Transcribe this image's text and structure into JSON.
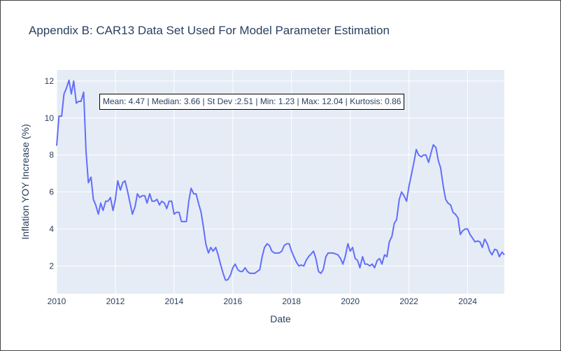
{
  "title": "Appendix B: CAR13 Data Set Used For Model Parameter Estimation",
  "annotation": "Mean: 4.47 | Median: 3.66 | St Dev :2.51 | Min: 1.23 | Max: 12.04 | Kurtosis: 0.86",
  "colors": {
    "line": "#636efa",
    "plot_bg": "#e5ecf6",
    "grid": "#ffffff",
    "text": "#2a3f5f"
  },
  "chart_data": {
    "type": "line",
    "title": "Appendix B: CAR13 Data Set Used For Model Parameter Estimation",
    "xlabel": "Date",
    "ylabel": "Inflation YOY Increase (%)",
    "xlim": [
      2010.0,
      2025.25
    ],
    "ylim": [
      0.5,
      12.6
    ],
    "x_ticks": [
      2010,
      2012,
      2014,
      2016,
      2018,
      2020,
      2022,
      2024
    ],
    "x_tick_labels": [
      "2010",
      "2012",
      "2014",
      "2016",
      "2018",
      "2020",
      "2022",
      "2024"
    ],
    "y_ticks": [
      2,
      4,
      6,
      8,
      10,
      12
    ],
    "y_tick_labels": [
      "2",
      "4",
      "6",
      "8",
      "10",
      "12"
    ],
    "grid": true,
    "series": [
      {
        "points": [
          [
            2010.0,
            8.5
          ],
          [
            2010.08,
            10.1
          ],
          [
            2010.17,
            10.1
          ],
          [
            2010.25,
            11.3
          ],
          [
            2010.33,
            11.6
          ],
          [
            2010.42,
            12.04
          ],
          [
            2010.5,
            11.3
          ],
          [
            2010.58,
            12.0
          ],
          [
            2010.67,
            10.8
          ],
          [
            2010.75,
            10.9
          ],
          [
            2010.83,
            10.9
          ],
          [
            2010.92,
            11.4
          ],
          [
            2011.0,
            8.2
          ],
          [
            2011.08,
            6.5
          ],
          [
            2011.17,
            6.8
          ],
          [
            2011.25,
            5.6
          ],
          [
            2011.33,
            5.3
          ],
          [
            2011.42,
            4.8
          ],
          [
            2011.5,
            5.4
          ],
          [
            2011.58,
            5.0
          ],
          [
            2011.67,
            5.5
          ],
          [
            2011.75,
            5.5
          ],
          [
            2011.83,
            5.7
          ],
          [
            2011.92,
            5.0
          ],
          [
            2012.0,
            5.6
          ],
          [
            2012.08,
            6.6
          ],
          [
            2012.17,
            6.1
          ],
          [
            2012.25,
            6.5
          ],
          [
            2012.33,
            6.6
          ],
          [
            2012.42,
            6.0
          ],
          [
            2012.5,
            5.4
          ],
          [
            2012.58,
            4.8
          ],
          [
            2012.67,
            5.2
          ],
          [
            2012.75,
            5.9
          ],
          [
            2012.83,
            5.7
          ],
          [
            2012.92,
            5.8
          ],
          [
            2013.0,
            5.8
          ],
          [
            2013.08,
            5.4
          ],
          [
            2013.17,
            5.9
          ],
          [
            2013.25,
            5.5
          ],
          [
            2013.33,
            5.5
          ],
          [
            2013.42,
            5.6
          ],
          [
            2013.5,
            5.3
          ],
          [
            2013.58,
            5.5
          ],
          [
            2013.67,
            5.4
          ],
          [
            2013.75,
            5.1
          ],
          [
            2013.83,
            5.5
          ],
          [
            2013.92,
            5.5
          ],
          [
            2014.0,
            4.8
          ],
          [
            2014.08,
            4.9
          ],
          [
            2014.17,
            4.9
          ],
          [
            2014.25,
            4.4
          ],
          [
            2014.33,
            4.4
          ],
          [
            2014.42,
            4.4
          ],
          [
            2014.5,
            5.5
          ],
          [
            2014.58,
            6.2
          ],
          [
            2014.67,
            5.9
          ],
          [
            2014.75,
            5.9
          ],
          [
            2014.83,
            5.4
          ],
          [
            2014.92,
            4.9
          ],
          [
            2015.0,
            4.1
          ],
          [
            2015.08,
            3.2
          ],
          [
            2015.17,
            2.7
          ],
          [
            2015.25,
            3.0
          ],
          [
            2015.33,
            2.8
          ],
          [
            2015.42,
            3.0
          ],
          [
            2015.5,
            2.6
          ],
          [
            2015.58,
            2.1
          ],
          [
            2015.67,
            1.6
          ],
          [
            2015.75,
            1.23
          ],
          [
            2015.83,
            1.25
          ],
          [
            2015.92,
            1.5
          ],
          [
            2016.0,
            1.9
          ],
          [
            2016.08,
            2.1
          ],
          [
            2016.17,
            1.8
          ],
          [
            2016.25,
            1.7
          ],
          [
            2016.33,
            1.7
          ],
          [
            2016.42,
            1.9
          ],
          [
            2016.5,
            1.7
          ],
          [
            2016.58,
            1.6
          ],
          [
            2016.67,
            1.6
          ],
          [
            2016.75,
            1.6
          ],
          [
            2016.83,
            1.7
          ],
          [
            2016.92,
            1.8
          ],
          [
            2017.0,
            2.5
          ],
          [
            2017.08,
            3.0
          ],
          [
            2017.17,
            3.2
          ],
          [
            2017.25,
            3.1
          ],
          [
            2017.33,
            2.8
          ],
          [
            2017.42,
            2.7
          ],
          [
            2017.5,
            2.7
          ],
          [
            2017.58,
            2.7
          ],
          [
            2017.67,
            2.8
          ],
          [
            2017.75,
            3.1
          ],
          [
            2017.83,
            3.2
          ],
          [
            2017.92,
            3.2
          ],
          [
            2018.0,
            2.8
          ],
          [
            2018.08,
            2.5
          ],
          [
            2018.17,
            2.2
          ],
          [
            2018.25,
            2.0
          ],
          [
            2018.33,
            2.05
          ],
          [
            2018.42,
            2.0
          ],
          [
            2018.5,
            2.3
          ],
          [
            2018.58,
            2.5
          ],
          [
            2018.67,
            2.65
          ],
          [
            2018.75,
            2.8
          ],
          [
            2018.83,
            2.4
          ],
          [
            2018.92,
            1.7
          ],
          [
            2019.0,
            1.6
          ],
          [
            2019.08,
            1.8
          ],
          [
            2019.17,
            2.5
          ],
          [
            2019.25,
            2.7
          ],
          [
            2019.33,
            2.7
          ],
          [
            2019.42,
            2.7
          ],
          [
            2019.5,
            2.65
          ],
          [
            2019.58,
            2.6
          ],
          [
            2019.67,
            2.4
          ],
          [
            2019.75,
            2.1
          ],
          [
            2019.83,
            2.5
          ],
          [
            2019.92,
            3.2
          ],
          [
            2020.0,
            2.8
          ],
          [
            2020.08,
            3.0
          ],
          [
            2020.17,
            2.4
          ],
          [
            2020.25,
            2.3
          ],
          [
            2020.33,
            1.9
          ],
          [
            2020.42,
            2.5
          ],
          [
            2020.5,
            2.1
          ],
          [
            2020.58,
            2.1
          ],
          [
            2020.67,
            2.0
          ],
          [
            2020.75,
            2.1
          ],
          [
            2020.83,
            1.9
          ],
          [
            2020.92,
            2.3
          ],
          [
            2021.0,
            2.4
          ],
          [
            2021.08,
            2.1
          ],
          [
            2021.17,
            2.6
          ],
          [
            2021.25,
            2.5
          ],
          [
            2021.33,
            3.3
          ],
          [
            2021.42,
            3.6
          ],
          [
            2021.5,
            4.3
          ],
          [
            2021.58,
            4.5
          ],
          [
            2021.67,
            5.6
          ],
          [
            2021.75,
            6.0
          ],
          [
            2021.83,
            5.8
          ],
          [
            2021.92,
            5.5
          ],
          [
            2022.0,
            6.3
          ],
          [
            2022.08,
            6.9
          ],
          [
            2022.17,
            7.6
          ],
          [
            2022.25,
            8.3
          ],
          [
            2022.33,
            8.0
          ],
          [
            2022.42,
            7.9
          ],
          [
            2022.5,
            8.0
          ],
          [
            2022.58,
            8.0
          ],
          [
            2022.67,
            7.6
          ],
          [
            2022.75,
            8.1
          ],
          [
            2022.83,
            8.55
          ],
          [
            2022.92,
            8.4
          ],
          [
            2023.0,
            7.7
          ],
          [
            2023.08,
            7.3
          ],
          [
            2023.17,
            6.3
          ],
          [
            2023.25,
            5.6
          ],
          [
            2023.33,
            5.4
          ],
          [
            2023.42,
            5.3
          ],
          [
            2023.5,
            4.9
          ],
          [
            2023.58,
            4.8
          ],
          [
            2023.67,
            4.6
          ],
          [
            2023.75,
            3.7
          ],
          [
            2023.83,
            3.9
          ],
          [
            2023.92,
            4.0
          ],
          [
            2024.0,
            4.0
          ],
          [
            2024.08,
            3.7
          ],
          [
            2024.17,
            3.5
          ],
          [
            2024.25,
            3.3
          ],
          [
            2024.33,
            3.35
          ],
          [
            2024.42,
            3.3
          ],
          [
            2024.5,
            3.0
          ],
          [
            2024.58,
            3.45
          ],
          [
            2024.67,
            3.2
          ],
          [
            2024.75,
            2.8
          ],
          [
            2024.83,
            2.6
          ],
          [
            2024.92,
            2.9
          ],
          [
            2025.0,
            2.85
          ],
          [
            2025.08,
            2.5
          ],
          [
            2025.17,
            2.75
          ],
          [
            2025.25,
            2.6
          ]
        ]
      }
    ]
  }
}
